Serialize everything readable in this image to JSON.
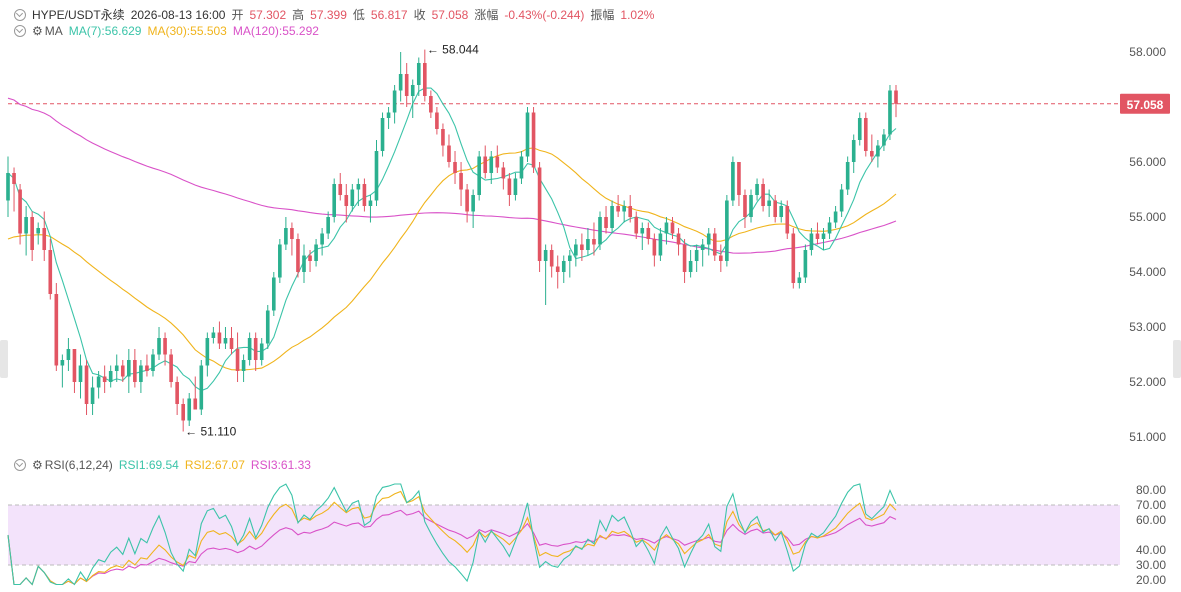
{
  "header": {
    "symbol": "HYPE/USDT永续",
    "datetime": "2026-08-13 16:00",
    "open_label": "开",
    "open": "57.302",
    "high_label": "高",
    "high": "57.399",
    "low_label": "低",
    "low": "56.817",
    "close_label": "收",
    "close": "57.058",
    "change_label": "涨幅",
    "change": "-0.43%(-0.244)",
    "amplitude_label": "振幅",
    "amplitude": "1.02%"
  },
  "ma_legend": {
    "name": "MA",
    "ma7": "MA(7):56.629",
    "ma30": "MA(30):55.503",
    "ma120": "MA(120):55.292"
  },
  "rsi_legend": {
    "name": "RSI(6,12,24)",
    "rsi1": "RSI1:69.54",
    "rsi2": "RSI2:67.07",
    "rsi3": "RSI3:61.33"
  },
  "colors": {
    "up": "#2bb08f",
    "down": "#e25563",
    "ma7": "#3cc4a9",
    "ma30": "#f0b41c",
    "ma120": "#d952c8",
    "rsi1": "#3cc4a9",
    "rsi2": "#f0b41c",
    "rsi3": "#d952c8",
    "rsi_band": "#f3e3fb",
    "grid_dash": "#bbbbbb"
  },
  "chart_data": [
    {
      "type": "candlestick",
      "ylim": [
        50.6,
        58.4
      ],
      "yticks": [
        "58.000",
        "57.000",
        "56.000",
        "55.000",
        "54.000",
        "53.000",
        "52.000",
        "51.000"
      ],
      "last_price": "57.058",
      "max_marker": "58.044",
      "min_marker": "51.110",
      "ohlc": [
        [
          55.3,
          56.1,
          55,
          55.8
        ],
        [
          55.8,
          55.9,
          55.1,
          55.6
        ],
        [
          55.5,
          55.6,
          54.5,
          54.7
        ],
        [
          54.7,
          55.2,
          54.3,
          55.0
        ],
        [
          55.0,
          55.1,
          54.2,
          54.4
        ],
        [
          54.7,
          54.9,
          54.5,
          54.8
        ],
        [
          54.8,
          55.1,
          54.2,
          54.4
        ],
        [
          54.4,
          54.6,
          53.5,
          53.6
        ],
        [
          53.6,
          53.8,
          52.2,
          52.3
        ],
        [
          52.3,
          52.5,
          51.9,
          52.4
        ],
        [
          52.4,
          52.8,
          52.2,
          52.6
        ],
        [
          52.6,
          52.6,
          51.8,
          52.0
        ],
        [
          52.0,
          52.5,
          51.7,
          52.3
        ],
        [
          52.3,
          52.4,
          51.4,
          51.6
        ],
        [
          51.6,
          52.1,
          51.4,
          51.9
        ],
        [
          51.9,
          52.2,
          51.7,
          52.1
        ],
        [
          52.1,
          52.3,
          51.8,
          52.0
        ],
        [
          52.0,
          52.3,
          51.9,
          52.2
        ],
        [
          52.2,
          52.5,
          52.0,
          52.3
        ],
        [
          52.3,
          52.4,
          52.0,
          52.1
        ],
        [
          52.1,
          52.6,
          51.8,
          52.4
        ],
        [
          52.4,
          52.6,
          51.9,
          52.0
        ],
        [
          52.0,
          52.4,
          51.8,
          52.3
        ],
        [
          52.3,
          52.5,
          52.1,
          52.2
        ],
        [
          52.2,
          52.6,
          52.1,
          52.5
        ],
        [
          52.5,
          53.0,
          52.4,
          52.8
        ],
        [
          52.8,
          52.9,
          52.3,
          52.5
        ],
        [
          52.5,
          52.6,
          51.9,
          52.0
        ],
        [
          52.0,
          52.1,
          51.4,
          51.6
        ],
        [
          51.6,
          51.7,
          51.1,
          51.3
        ],
        [
          51.3,
          51.8,
          51.2,
          51.7
        ],
        [
          51.7,
          52.1,
          51.5,
          51.5
        ],
        [
          51.5,
          52.4,
          51.4,
          52.3
        ],
        [
          52.3,
          52.9,
          52.1,
          52.8
        ],
        [
          52.8,
          53.0,
          52.7,
          52.9
        ],
        [
          52.9,
          53.1,
          52.6,
          52.7
        ],
        [
          52.7,
          53.0,
          52.6,
          52.8
        ],
        [
          52.8,
          53.0,
          52.5,
          52.6
        ],
        [
          52.6,
          52.9,
          52.0,
          52.2
        ],
        [
          52.2,
          52.5,
          52.0,
          52.4
        ],
        [
          52.4,
          52.9,
          52.3,
          52.8
        ],
        [
          52.8,
          52.9,
          52.2,
          52.4
        ],
        [
          52.4,
          52.8,
          52.3,
          52.7
        ],
        [
          52.7,
          53.4,
          52.6,
          53.3
        ],
        [
          53.3,
          54.0,
          53.2,
          53.9
        ],
        [
          53.9,
          54.6,
          53.8,
          54.5
        ],
        [
          54.5,
          55.0,
          54.4,
          54.8
        ],
        [
          54.8,
          54.9,
          54.3,
          54.6
        ],
        [
          54.6,
          54.7,
          53.9,
          54.0
        ],
        [
          54.0,
          54.5,
          53.8,
          54.3
        ],
        [
          54.3,
          54.4,
          54.0,
          54.2
        ],
        [
          54.2,
          54.6,
          54.1,
          54.5
        ],
        [
          54.5,
          54.8,
          54.3,
          54.7
        ],
        [
          54.7,
          55.1,
          54.6,
          55.0
        ],
        [
          55.0,
          55.7,
          54.9,
          55.6
        ],
        [
          55.6,
          55.8,
          55.3,
          55.4
        ],
        [
          55.4,
          55.6,
          54.9,
          55.2
        ],
        [
          55.2,
          55.6,
          55.1,
          55.5
        ],
        [
          55.5,
          55.7,
          55.2,
          55.6
        ],
        [
          55.6,
          55.7,
          55.1,
          55.2
        ],
        [
          55.2,
          55.4,
          54.9,
          55.3
        ],
        [
          55.3,
          56.4,
          55.2,
          56.2
        ],
        [
          56.2,
          56.9,
          56.1,
          56.8
        ],
        [
          56.8,
          57.0,
          56.6,
          56.9
        ],
        [
          56.9,
          57.4,
          56.7,
          57.3
        ],
        [
          57.3,
          58.0,
          57.1,
          57.6
        ],
        [
          57.6,
          57.8,
          57.0,
          57.2
        ],
        [
          57.2,
          57.5,
          56.8,
          57.4
        ],
        [
          57.4,
          57.9,
          57.2,
          57.8
        ],
        [
          57.8,
          58.044,
          57.1,
          57.2
        ],
        [
          57.2,
          57.3,
          56.8,
          56.9
        ],
        [
          56.9,
          57.0,
          56.5,
          56.6
        ],
        [
          56.6,
          56.7,
          56.1,
          56.3
        ],
        [
          56.3,
          56.5,
          55.9,
          56.0
        ],
        [
          56.0,
          56.2,
          55.6,
          55.8
        ],
        [
          55.8,
          56.0,
          55.2,
          55.5
        ],
        [
          55.5,
          55.6,
          54.9,
          55.1
        ],
        [
          55.1,
          55.5,
          54.8,
          55.4
        ],
        [
          55.4,
          56.2,
          55.3,
          56.1
        ],
        [
          56.1,
          56.3,
          55.7,
          55.8
        ],
        [
          55.8,
          56.2,
          55.6,
          56.1
        ],
        [
          56.1,
          56.3,
          55.8,
          55.9
        ],
        [
          55.9,
          56.0,
          55.5,
          55.7
        ],
        [
          55.7,
          55.8,
          55.2,
          55.4
        ],
        [
          55.4,
          55.8,
          55.3,
          55.7
        ],
        [
          55.7,
          56.2,
          55.6,
          56.1
        ],
        [
          56.1,
          57.0,
          56.0,
          56.9
        ],
        [
          56.9,
          57.0,
          55.8,
          55.9
        ],
        [
          55.9,
          56.0,
          54.0,
          54.2
        ],
        [
          54.2,
          54.5,
          53.4,
          54.4
        ],
        [
          54.4,
          54.5,
          53.9,
          54.1
        ],
        [
          54.1,
          54.3,
          53.7,
          54.0
        ],
        [
          54.0,
          54.3,
          53.8,
          54.2
        ],
        [
          54.2,
          54.4,
          53.9,
          54.3
        ],
        [
          54.3,
          54.6,
          54.1,
          54.5
        ],
        [
          54.5,
          54.7,
          54.2,
          54.4
        ],
        [
          54.4,
          54.8,
          54.3,
          54.6
        ],
        [
          54.6,
          54.9,
          54.3,
          54.5
        ],
        [
          54.5,
          55.1,
          54.4,
          55.0
        ],
        [
          55.0,
          55.2,
          54.7,
          54.8
        ],
        [
          54.8,
          55.3,
          54.7,
          55.2
        ],
        [
          55.2,
          55.4,
          55.0,
          55.1
        ],
        [
          55.1,
          55.3,
          54.9,
          55.2
        ],
        [
          55.2,
          55.4,
          54.9,
          55.0
        ],
        [
          55.0,
          55.1,
          54.6,
          54.7
        ],
        [
          54.7,
          54.9,
          54.4,
          54.8
        ],
        [
          54.8,
          54.9,
          54.5,
          54.6
        ],
        [
          54.6,
          54.7,
          54.1,
          54.3
        ],
        [
          54.3,
          54.8,
          54.2,
          54.7
        ],
        [
          54.7,
          55.0,
          54.5,
          54.9
        ],
        [
          54.9,
          55.0,
          54.6,
          54.7
        ],
        [
          54.7,
          54.8,
          54.3,
          54.5
        ],
        [
          54.5,
          54.6,
          53.8,
          54.0
        ],
        [
          54.0,
          54.4,
          53.9,
          54.2
        ],
        [
          54.2,
          54.5,
          54.0,
          54.4
        ],
        [
          54.4,
          54.6,
          54.1,
          54.5
        ],
        [
          54.5,
          54.8,
          54.3,
          54.7
        ],
        [
          54.7,
          54.8,
          54.2,
          54.3
        ],
        [
          54.3,
          54.5,
          54.0,
          54.2
        ],
        [
          54.2,
          55.4,
          54.1,
          55.3
        ],
        [
          55.3,
          56.1,
          55.2,
          56.0
        ],
        [
          56.0,
          56.0,
          55.2,
          55.4
        ],
        [
          55.4,
          55.5,
          54.8,
          55.0
        ],
        [
          55.0,
          55.5,
          54.9,
          55.4
        ],
        [
          55.4,
          55.7,
          55.3,
          55.6
        ],
        [
          55.6,
          55.7,
          55.1,
          55.2
        ],
        [
          55.2,
          55.5,
          55.0,
          55.3
        ],
        [
          55.3,
          55.4,
          54.9,
          55.0
        ],
        [
          55.0,
          55.3,
          54.9,
          55.2
        ],
        [
          55.2,
          55.3,
          54.6,
          54.7
        ],
        [
          54.7,
          54.8,
          53.7,
          53.8
        ],
        [
          53.8,
          54.0,
          53.7,
          53.9
        ],
        [
          53.9,
          54.5,
          53.8,
          54.4
        ],
        [
          54.4,
          54.8,
          54.3,
          54.7
        ],
        [
          54.7,
          54.9,
          54.5,
          54.6
        ],
        [
          54.6,
          54.8,
          54.4,
          54.7
        ],
        [
          54.7,
          55.0,
          54.6,
          54.9
        ],
        [
          54.9,
          55.2,
          54.8,
          55.1
        ],
        [
          55.1,
          55.6,
          55.0,
          55.5
        ],
        [
          55.5,
          56.1,
          55.4,
          56.0
        ],
        [
          56.0,
          56.5,
          55.8,
          56.4
        ],
        [
          56.4,
          56.9,
          56.3,
          56.8
        ],
        [
          56.8,
          56.9,
          56.1,
          56.2
        ],
        [
          56.2,
          56.5,
          56.0,
          56.1
        ],
        [
          56.1,
          56.4,
          55.9,
          56.3
        ],
        [
          56.3,
          56.6,
          56.2,
          56.5
        ],
        [
          56.5,
          57.4,
          56.4,
          57.3
        ],
        [
          57.3,
          57.399,
          56.817,
          57.058
        ]
      ],
      "ma7_end": 56.629,
      "ma30_end": 55.503,
      "ma120_end": 55.292
    },
    {
      "type": "line",
      "title": "RSI(6,12,24)",
      "ylim": [
        16,
        85
      ],
      "yticks": [
        "80.00",
        "70.00",
        "60.00",
        "40.00",
        "30.00",
        "20.00"
      ],
      "band": [
        30,
        70
      ],
      "series": [
        {
          "name": "RSI1",
          "last": 69.54
        },
        {
          "name": "RSI2",
          "last": 67.07
        },
        {
          "name": "RSI3",
          "last": 61.33
        }
      ]
    }
  ]
}
